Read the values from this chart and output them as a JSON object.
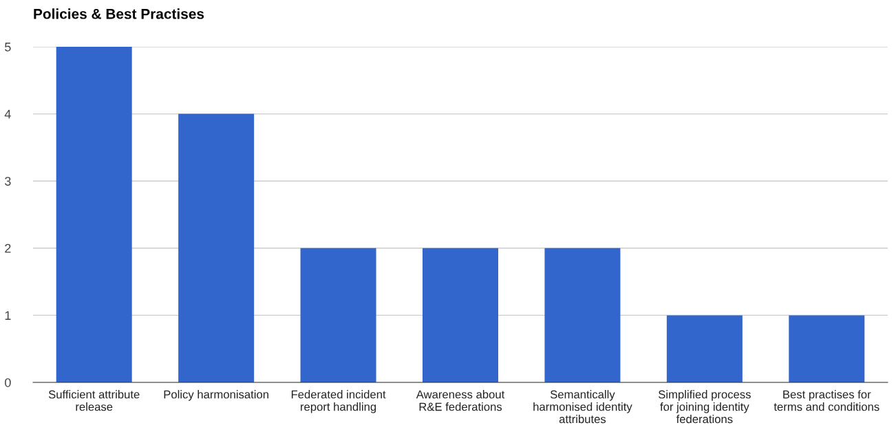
{
  "chart_data": {
    "type": "bar",
    "title": "Policies & Best Practises",
    "categories": [
      "Sufficient attribute\nrelease",
      "Policy harmonisation",
      "Federated incident\nreport handling",
      "Awareness about\nR&E federations",
      "Semantically\nharmonised identity\nattributes",
      "Simplified process\nfor joining identity\nfederations",
      "Best practises for\nterms and conditions"
    ],
    "values": [
      5,
      4,
      2,
      2,
      2,
      1,
      1
    ],
    "color": "#3366cc",
    "ylim": [
      0,
      5
    ],
    "yticks": [
      0,
      1,
      2,
      3,
      4,
      5
    ],
    "grid": "y",
    "legend": false
  }
}
